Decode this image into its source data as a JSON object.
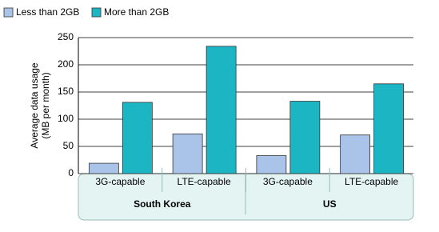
{
  "chart_data": {
    "type": "bar",
    "y_label": [
      "Average data usage",
      "(MB per month)"
    ],
    "categories": [
      "3G-capable",
      "LTE-capable",
      "3G-capable",
      "LTE-capable"
    ],
    "groups": [
      "South Korea",
      "US"
    ],
    "series": [
      {
        "name": "Less than 2GB",
        "color": "#a9c4e8",
        "values": [
          19,
          73,
          33,
          71
        ]
      },
      {
        "name": "More than 2GB",
        "color": "#1bb5c4",
        "values": [
          131,
          234,
          133,
          165
        ]
      }
    ],
    "ylim": [
      0,
      250
    ],
    "yticks": [
      0,
      50,
      100,
      150,
      200,
      250
    ],
    "grid": true
  }
}
